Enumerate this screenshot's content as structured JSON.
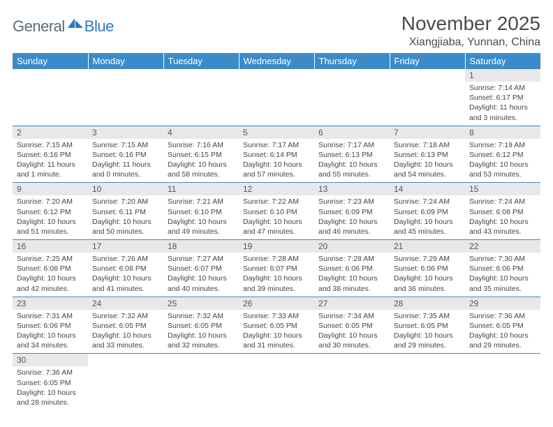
{
  "logo": {
    "part1": "General",
    "part2": "Blue"
  },
  "title": "November 2025",
  "location": "Xiangjiaba, Yunnan, China",
  "colors": {
    "header_bg": "#3b8bc9",
    "header_text": "#ffffff",
    "daynum_bg": "#e8e8ea",
    "cell_border": "#3b8bc9",
    "body_text": "#444444",
    "logo_gray": "#5f6b74",
    "logo_blue": "#2d7bc0"
  },
  "weekdays": [
    "Sunday",
    "Monday",
    "Tuesday",
    "Wednesday",
    "Thursday",
    "Friday",
    "Saturday"
  ],
  "weeks": [
    [
      null,
      null,
      null,
      null,
      null,
      null,
      {
        "n": "1",
        "sunrise": "7:14 AM",
        "sunset": "6:17 PM",
        "daylight": "11 hours and 3 minutes."
      }
    ],
    [
      {
        "n": "2",
        "sunrise": "7:15 AM",
        "sunset": "6:16 PM",
        "daylight": "11 hours and 1 minute."
      },
      {
        "n": "3",
        "sunrise": "7:15 AM",
        "sunset": "6:16 PM",
        "daylight": "11 hours and 0 minutes."
      },
      {
        "n": "4",
        "sunrise": "7:16 AM",
        "sunset": "6:15 PM",
        "daylight": "10 hours and 58 minutes."
      },
      {
        "n": "5",
        "sunrise": "7:17 AM",
        "sunset": "6:14 PM",
        "daylight": "10 hours and 57 minutes."
      },
      {
        "n": "6",
        "sunrise": "7:17 AM",
        "sunset": "6:13 PM",
        "daylight": "10 hours and 55 minutes."
      },
      {
        "n": "7",
        "sunrise": "7:18 AM",
        "sunset": "6:13 PM",
        "daylight": "10 hours and 54 minutes."
      },
      {
        "n": "8",
        "sunrise": "7:19 AM",
        "sunset": "6:12 PM",
        "daylight": "10 hours and 53 minutes."
      }
    ],
    [
      {
        "n": "9",
        "sunrise": "7:20 AM",
        "sunset": "6:12 PM",
        "daylight": "10 hours and 51 minutes."
      },
      {
        "n": "10",
        "sunrise": "7:20 AM",
        "sunset": "6:11 PM",
        "daylight": "10 hours and 50 minutes."
      },
      {
        "n": "11",
        "sunrise": "7:21 AM",
        "sunset": "6:10 PM",
        "daylight": "10 hours and 49 minutes."
      },
      {
        "n": "12",
        "sunrise": "7:22 AM",
        "sunset": "6:10 PM",
        "daylight": "10 hours and 47 minutes."
      },
      {
        "n": "13",
        "sunrise": "7:23 AM",
        "sunset": "6:09 PM",
        "daylight": "10 hours and 46 minutes."
      },
      {
        "n": "14",
        "sunrise": "7:24 AM",
        "sunset": "6:09 PM",
        "daylight": "10 hours and 45 minutes."
      },
      {
        "n": "15",
        "sunrise": "7:24 AM",
        "sunset": "6:08 PM",
        "daylight": "10 hours and 43 minutes."
      }
    ],
    [
      {
        "n": "16",
        "sunrise": "7:25 AM",
        "sunset": "6:08 PM",
        "daylight": "10 hours and 42 minutes."
      },
      {
        "n": "17",
        "sunrise": "7:26 AM",
        "sunset": "6:08 PM",
        "daylight": "10 hours and 41 minutes."
      },
      {
        "n": "18",
        "sunrise": "7:27 AM",
        "sunset": "6:07 PM",
        "daylight": "10 hours and 40 minutes."
      },
      {
        "n": "19",
        "sunrise": "7:28 AM",
        "sunset": "6:07 PM",
        "daylight": "10 hours and 39 minutes."
      },
      {
        "n": "20",
        "sunrise": "7:28 AM",
        "sunset": "6:06 PM",
        "daylight": "10 hours and 38 minutes."
      },
      {
        "n": "21",
        "sunrise": "7:29 AM",
        "sunset": "6:06 PM",
        "daylight": "10 hours and 36 minutes."
      },
      {
        "n": "22",
        "sunrise": "7:30 AM",
        "sunset": "6:06 PM",
        "daylight": "10 hours and 35 minutes."
      }
    ],
    [
      {
        "n": "23",
        "sunrise": "7:31 AM",
        "sunset": "6:06 PM",
        "daylight": "10 hours and 34 minutes."
      },
      {
        "n": "24",
        "sunrise": "7:32 AM",
        "sunset": "6:05 PM",
        "daylight": "10 hours and 33 minutes."
      },
      {
        "n": "25",
        "sunrise": "7:32 AM",
        "sunset": "6:05 PM",
        "daylight": "10 hours and 32 minutes."
      },
      {
        "n": "26",
        "sunrise": "7:33 AM",
        "sunset": "6:05 PM",
        "daylight": "10 hours and 31 minutes."
      },
      {
        "n": "27",
        "sunrise": "7:34 AM",
        "sunset": "6:05 PM",
        "daylight": "10 hours and 30 minutes."
      },
      {
        "n": "28",
        "sunrise": "7:35 AM",
        "sunset": "6:05 PM",
        "daylight": "10 hours and 29 minutes."
      },
      {
        "n": "29",
        "sunrise": "7:36 AM",
        "sunset": "6:05 PM",
        "daylight": "10 hours and 29 minutes."
      }
    ],
    [
      {
        "n": "30",
        "sunrise": "7:36 AM",
        "sunset": "6:05 PM",
        "daylight": "10 hours and 28 minutes."
      },
      null,
      null,
      null,
      null,
      null,
      null
    ]
  ],
  "labels": {
    "sunrise": "Sunrise:",
    "sunset": "Sunset:",
    "daylight": "Daylight:"
  }
}
